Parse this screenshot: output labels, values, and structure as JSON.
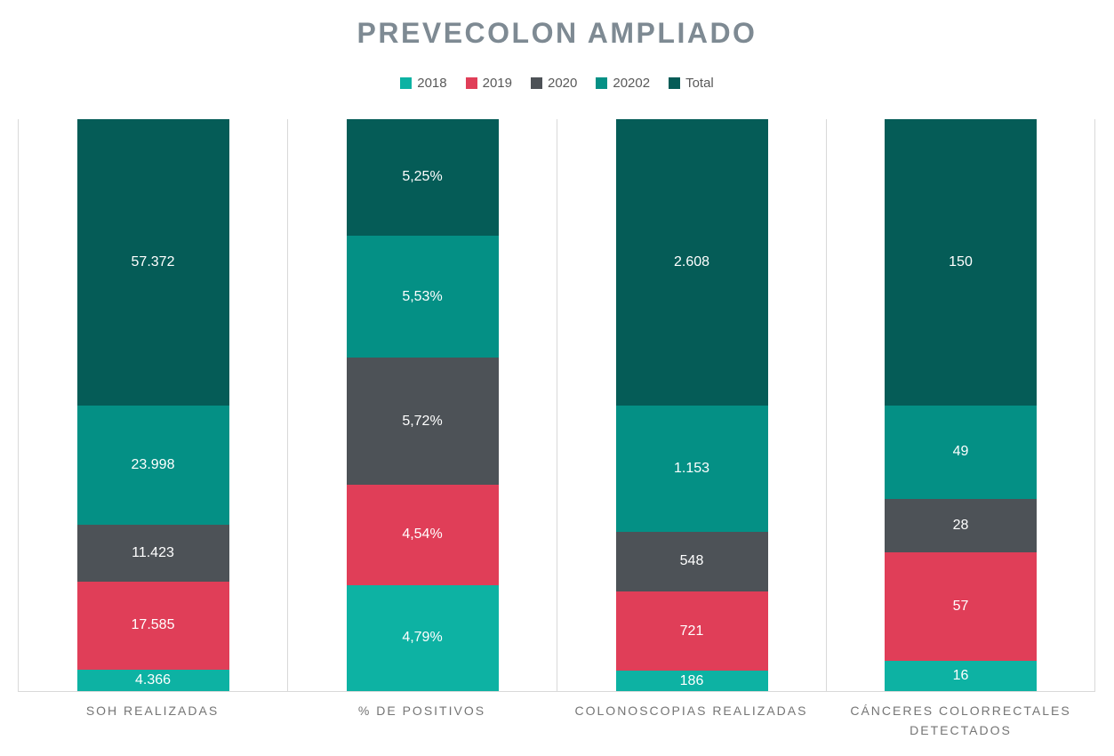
{
  "title": "PREVECOLON AMPLIADO",
  "legend": {
    "items": [
      "2018",
      "2019",
      "2020",
      "20202",
      "Total"
    ]
  },
  "chart_data": {
    "type": "bar",
    "subtype": "stacked-column-each-column-full-height",
    "title": "PREVECOLON AMPLIADO",
    "categories": [
      "SOH REALIZADAS",
      "% DE POSITIVOS",
      "COLONOSCOPIAS REALIZADAS",
      "CÁNCERES COLORRECTALES DETECTADOS"
    ],
    "series": [
      {
        "name": "2018",
        "color": "#0DB2A3",
        "values": [
          4366,
          4.79,
          186,
          16
        ],
        "labels": [
          "4.366",
          "4,79%",
          "186",
          "16"
        ]
      },
      {
        "name": "2019",
        "color": "#E03E58",
        "values": [
          17585,
          4.54,
          721,
          57
        ],
        "labels": [
          "17.585",
          "4,54%",
          "721",
          "57"
        ]
      },
      {
        "name": "2020",
        "color": "#4D5257",
        "values": [
          11423,
          5.72,
          548,
          28
        ],
        "labels": [
          "11.423",
          "5,72%",
          "548",
          "28"
        ]
      },
      {
        "name": "20202",
        "color": "#049085",
        "values": [
          23998,
          5.53,
          1153,
          49
        ],
        "labels": [
          "23.998",
          "5,53%",
          "1.153",
          "49"
        ]
      },
      {
        "name": "Total",
        "color": "#055C57",
        "values": [
          57372,
          5.25,
          2608,
          150
        ],
        "labels": [
          "57.372",
          "5,25%",
          "2.608",
          "150"
        ]
      }
    ],
    "stack_order_bottom_to_top": [
      "2018",
      "2019",
      "2020",
      "20202",
      "Total"
    ],
    "legend_position": "top-center",
    "grid": {
      "vertical_category_separators": true,
      "baseline": true,
      "y_axis_labels": false
    },
    "data_label_color": "#FFFFFF"
  },
  "colors": {
    "title_text": "#7E8A93",
    "legend_text": "#595959",
    "axis_label_text": "#757575",
    "grid_line": "#D9D9D9",
    "data_label_text": "#FFFFFF",
    "background": "#FFFFFF"
  }
}
